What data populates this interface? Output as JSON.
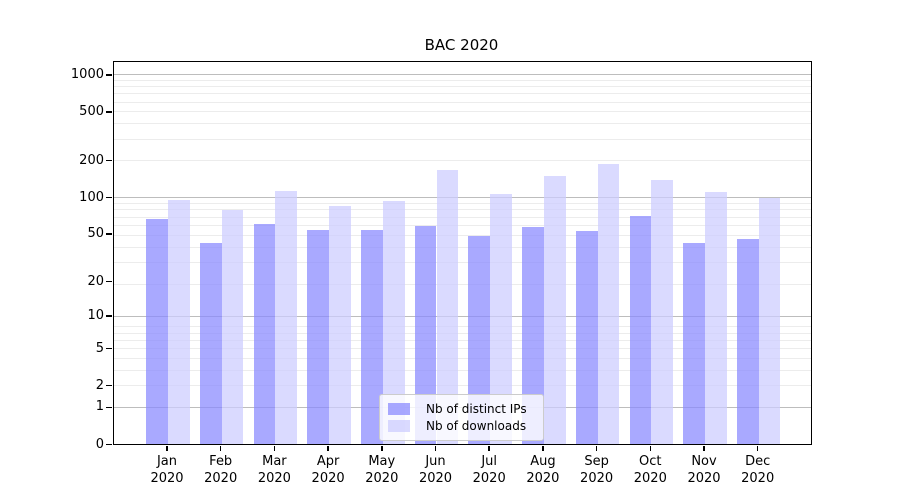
{
  "chart_data": {
    "type": "bar",
    "title": "BAC 2020",
    "categories": [
      "Jan\n2020",
      "Feb\n2020",
      "Mar\n2020",
      "Apr\n2020",
      "May\n2020",
      "Jun\n2020",
      "Jul\n2020",
      "Aug\n2020",
      "Sep\n2020",
      "Oct\n2020",
      "Nov\n2020",
      "Dec\n2020"
    ],
    "series": [
      {
        "name": "Nb of distinct IPs",
        "color": "#8888ff",
        "alpha": 0.72,
        "values": [
          66,
          42,
          60,
          54,
          54,
          58,
          48,
          57,
          53,
          70,
          42,
          45
        ]
      },
      {
        "name": "Nb of downloads",
        "color": "#ccccff",
        "alpha": 0.72,
        "values": [
          95,
          79,
          112,
          85,
          92,
          166,
          105,
          148,
          185,
          138,
          110,
          98
        ]
      }
    ],
    "yscale": "log1p",
    "ylim": [
      0,
      1288
    ],
    "ytick_values": [
      1000,
      500,
      200,
      100,
      50,
      20,
      10,
      5,
      2,
      1,
      0
    ],
    "ytick_labels": [
      "1000",
      "500",
      "200",
      "100",
      "50",
      "20",
      "10",
      "5",
      "2",
      "1",
      "0"
    ],
    "grid": "horizontal",
    "grid_major_values": [
      1,
      10,
      100,
      1000
    ],
    "legend_position": "lower-center-inside",
    "colors": {
      "major_grid": "#bdbdbd",
      "minor_grid": "#ececec",
      "axis": "#000000"
    }
  }
}
